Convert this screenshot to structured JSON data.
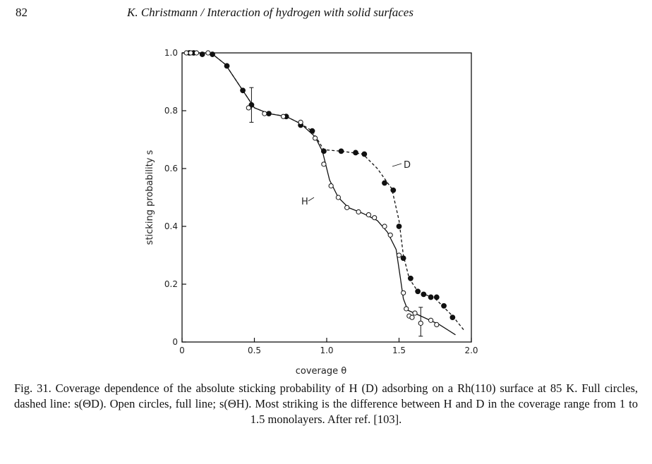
{
  "header": {
    "page_number": "82",
    "running_head": "K. Christmann / Interaction of hydrogen with solid surfaces"
  },
  "caption": {
    "text": "Fig. 31. Coverage dependence of the absolute sticking probability of H (D) adsorbing on a Rh(110) surface at 85 K. Full circles, dashed line: s(ΘD). Open circles, full line; s(ΘH). Most striking is the difference between H and D in the coverage range from 1 to 1.5 monolayers. After ref. [103]."
  },
  "chart_data": {
    "type": "scatter",
    "xlabel": "coverage θ",
    "ylabel": "sticking probability s",
    "xlim": [
      0,
      2.0
    ],
    "ylim": [
      0,
      1.0
    ],
    "x_ticks": [
      0,
      0.5,
      1.0,
      1.5,
      2.0
    ],
    "x_tick_labels": [
      "0",
      "0.5",
      "1.0",
      "1.5",
      "2.0"
    ],
    "y_ticks": [
      0,
      0.2,
      0.4,
      0.6,
      0.8,
      1.0
    ],
    "y_tick_labels": [
      "0",
      "0.2",
      "0.4",
      "0.6",
      "0.8",
      "1.0"
    ],
    "grid": false,
    "series": [
      {
        "name": "D",
        "marker": "filled-circle",
        "line": "dashed",
        "points": [
          [
            0.05,
            1.0
          ],
          [
            0.08,
            1.0
          ],
          [
            0.14,
            0.995
          ],
          [
            0.21,
            0.995
          ],
          [
            0.31,
            0.955
          ],
          [
            0.42,
            0.87
          ],
          [
            0.48,
            0.82
          ],
          [
            0.6,
            0.79
          ],
          [
            0.72,
            0.78
          ],
          [
            0.82,
            0.75
          ],
          [
            0.9,
            0.73
          ],
          [
            0.98,
            0.66
          ],
          [
            1.1,
            0.66
          ],
          [
            1.2,
            0.655
          ],
          [
            1.26,
            0.65
          ],
          [
            1.4,
            0.55
          ],
          [
            1.46,
            0.525
          ],
          [
            1.5,
            0.4
          ],
          [
            1.53,
            0.29
          ],
          [
            1.58,
            0.22
          ],
          [
            1.63,
            0.175
          ],
          [
            1.67,
            0.165
          ],
          [
            1.72,
            0.155
          ],
          [
            1.76,
            0.155
          ],
          [
            1.81,
            0.125
          ],
          [
            1.87,
            0.085
          ]
        ],
        "curve": [
          [
            0.0,
            1.0
          ],
          [
            0.2,
            1.0
          ],
          [
            0.3,
            0.96
          ],
          [
            0.42,
            0.87
          ],
          [
            0.5,
            0.81
          ],
          [
            0.6,
            0.79
          ],
          [
            0.72,
            0.78
          ],
          [
            0.82,
            0.755
          ],
          [
            0.9,
            0.73
          ],
          [
            0.98,
            0.665
          ],
          [
            1.1,
            0.66
          ],
          [
            1.25,
            0.65
          ],
          [
            1.35,
            0.6
          ],
          [
            1.45,
            0.53
          ],
          [
            1.5,
            0.42
          ],
          [
            1.53,
            0.3
          ],
          [
            1.57,
            0.22
          ],
          [
            1.63,
            0.175
          ],
          [
            1.75,
            0.15
          ],
          [
            1.87,
            0.09
          ],
          [
            1.95,
            0.04
          ]
        ]
      },
      {
        "name": "H",
        "marker": "open-circle",
        "line": "solid",
        "points": [
          [
            0.03,
            1.0
          ],
          [
            0.06,
            1.0
          ],
          [
            0.1,
            1.0
          ],
          [
            0.18,
            1.0
          ],
          [
            0.46,
            0.81
          ],
          [
            0.57,
            0.79
          ],
          [
            0.7,
            0.78
          ],
          [
            0.82,
            0.76
          ],
          [
            0.92,
            0.705
          ],
          [
            0.98,
            0.615
          ],
          [
            1.03,
            0.54
          ],
          [
            1.08,
            0.5
          ],
          [
            1.14,
            0.465
          ],
          [
            1.22,
            0.45
          ],
          [
            1.29,
            0.44
          ],
          [
            1.33,
            0.43
          ],
          [
            1.4,
            0.4
          ],
          [
            1.44,
            0.37
          ],
          [
            1.5,
            0.3
          ],
          [
            1.53,
            0.17
          ],
          [
            1.55,
            0.115
          ],
          [
            1.57,
            0.09
          ],
          [
            1.59,
            0.085
          ],
          [
            1.61,
            0.1
          ],
          [
            1.65,
            0.065
          ],
          [
            1.72,
            0.075
          ],
          [
            1.76,
            0.06
          ]
        ],
        "curve": [
          [
            0.0,
            1.0
          ],
          [
            0.2,
            1.0
          ],
          [
            0.3,
            0.96
          ],
          [
            0.42,
            0.87
          ],
          [
            0.5,
            0.81
          ],
          [
            0.6,
            0.79
          ],
          [
            0.72,
            0.78
          ],
          [
            0.82,
            0.755
          ],
          [
            0.92,
            0.71
          ],
          [
            0.97,
            0.66
          ],
          [
            1.02,
            0.56
          ],
          [
            1.08,
            0.5
          ],
          [
            1.15,
            0.465
          ],
          [
            1.25,
            0.445
          ],
          [
            1.35,
            0.42
          ],
          [
            1.42,
            0.38
          ],
          [
            1.48,
            0.32
          ],
          [
            1.51,
            0.22
          ],
          [
            1.53,
            0.15
          ],
          [
            1.56,
            0.11
          ],
          [
            1.65,
            0.09
          ],
          [
            1.78,
            0.06
          ],
          [
            1.89,
            0.025
          ]
        ]
      }
    ],
    "error_bars": [
      {
        "x": 0.48,
        "y": 0.82,
        "low": 0.76,
        "high": 0.88
      },
      {
        "x": 1.65,
        "y": 0.065,
        "low": 0.02,
        "high": 0.12
      }
    ],
    "labels": [
      {
        "text": "D",
        "series": "D"
      },
      {
        "text": "H",
        "series": "H"
      }
    ]
  }
}
